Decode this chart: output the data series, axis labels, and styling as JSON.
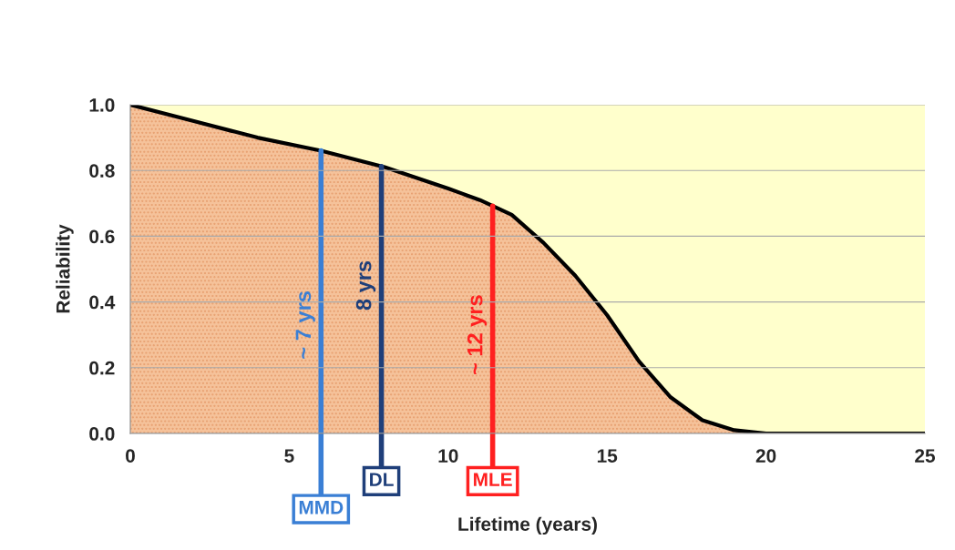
{
  "chart_data": {
    "type": "area",
    "xlabel": "Lifetime (years)",
    "ylabel": "Reliability",
    "x": [
      0,
      2,
      4,
      6,
      8,
      10,
      11,
      12,
      13,
      14,
      15,
      16,
      17,
      18,
      19,
      20,
      22,
      25
    ],
    "series": [
      {
        "color": "#f5c29a",
        "values": [
          1.0,
          0.95,
          0.9,
          0.86,
          0.81,
          0.745,
          0.71,
          0.665,
          0.58,
          0.48,
          0.36,
          0.22,
          0.11,
          0.04,
          0.01,
          0.0,
          0.0,
          0.0
        ]
      }
    ],
    "xlim": [
      0,
      25
    ],
    "xticks": [
      0,
      5,
      10,
      15,
      20,
      25
    ],
    "ylim": [
      0,
      1
    ],
    "yticks": [
      {
        "value": 0,
        "label": "0.0"
      },
      {
        "value": 0.2,
        "label": "0.2"
      },
      {
        "value": 0.4,
        "label": "0.4"
      },
      {
        "value": 0.6,
        "label": "0.6"
      },
      {
        "value": 0.8,
        "label": "0.8"
      },
      {
        "value": 1,
        "label": "1.0"
      }
    ],
    "grid": "y",
    "ref_lines": [
      {
        "axis": "x",
        "value": 6.0,
        "label": "MMD",
        "color": "#3a7fd5"
      },
      {
        "axis": "x",
        "value": 7.9,
        "label": "DL",
        "color": "#1f3f7a"
      },
      {
        "axis": "x",
        "value": 11.4,
        "label": "MLE",
        "color": "#ff2020"
      }
    ],
    "annotations": [
      "~ 7 yrs",
      "8 yrs",
      "~ 12 yrs"
    ]
  }
}
